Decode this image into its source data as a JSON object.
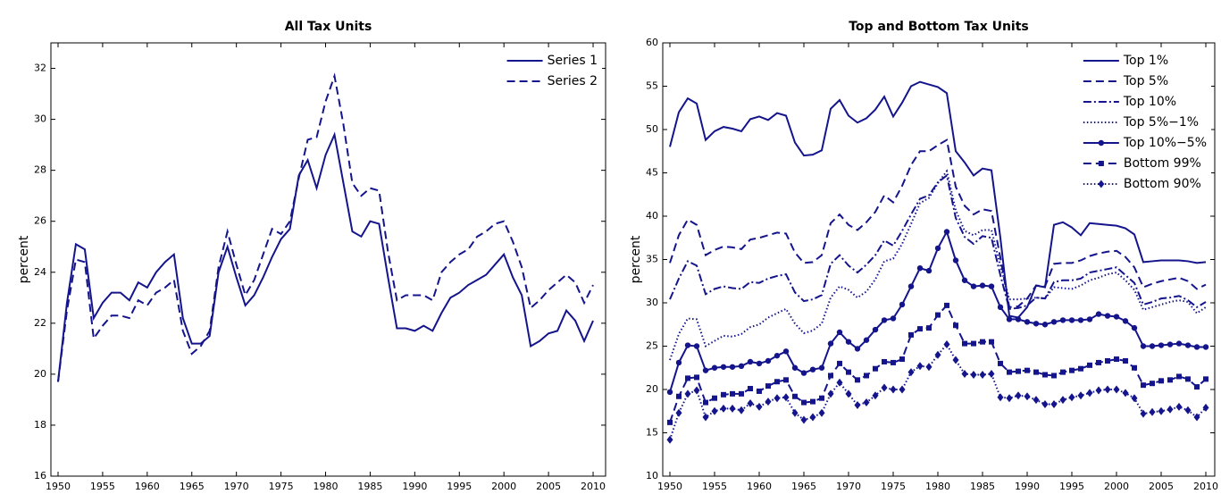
{
  "chart_data": [
    {
      "type": "line",
      "title": "All Tax Units",
      "ylabel": "percent",
      "x": [
        1950,
        1951,
        1952,
        1953,
        1954,
        1955,
        1956,
        1957,
        1958,
        1959,
        1960,
        1961,
        1962,
        1963,
        1964,
        1965,
        1966,
        1967,
        1968,
        1969,
        1970,
        1971,
        1972,
        1973,
        1974,
        1975,
        1976,
        1977,
        1978,
        1979,
        1980,
        1981,
        1982,
        1983,
        1984,
        1985,
        1986,
        1987,
        1988,
        1989,
        1990,
        1991,
        1992,
        1993,
        1994,
        1995,
        1996,
        1997,
        1998,
        1999,
        2000,
        2001,
        2002,
        2003,
        2004,
        2005,
        2006,
        2007,
        2008,
        2009,
        2010
      ],
      "xlim": [
        1949.2,
        2011.4
      ],
      "xticks": [
        1950,
        1955,
        1960,
        1965,
        1970,
        1975,
        1980,
        1985,
        1990,
        1995,
        2000,
        2005,
        2010
      ],
      "ylim": [
        16,
        33
      ],
      "yticks": [
        16,
        18,
        20,
        22,
        24,
        26,
        28,
        30,
        32
      ],
      "legend": "upper right",
      "series": [
        {
          "name": "Series 1",
          "color": "#14148c",
          "linestyle": "solid",
          "values": [
            19.7,
            22.8,
            25.1,
            24.9,
            22.2,
            22.8,
            23.2,
            23.2,
            22.9,
            23.6,
            23.4,
            24.0,
            24.4,
            24.7,
            22.2,
            21.2,
            21.2,
            21.5,
            24.0,
            25.0,
            23.8,
            22.7,
            23.1,
            23.8,
            24.6,
            25.3,
            25.7,
            27.8,
            28.4,
            27.3,
            28.6,
            29.4,
            27.5,
            25.6,
            25.4,
            26.0,
            25.9,
            23.8,
            21.8,
            21.8,
            21.7,
            21.9,
            21.7,
            22.4,
            23.0,
            23.2,
            23.5,
            23.7,
            23.9,
            24.3,
            24.7,
            23.8,
            23.1,
            21.1,
            21.3,
            21.6,
            21.7,
            22.5,
            22.1,
            21.3,
            22.1
          ]
        },
        {
          "name": "Series 2",
          "color": "#14148c",
          "linestyle": "dashed",
          "values": [
            19.7,
            22.5,
            24.5,
            24.4,
            21.4,
            21.9,
            22.3,
            22.3,
            22.2,
            22.9,
            22.7,
            23.2,
            23.4,
            23.7,
            21.7,
            20.8,
            21.1,
            21.7,
            24.2,
            25.6,
            24.3,
            23.1,
            23.7,
            24.7,
            25.7,
            25.5,
            26.0,
            27.7,
            29.2,
            29.3,
            30.7,
            31.7,
            29.8,
            27.5,
            27.0,
            27.3,
            27.2,
            24.8,
            22.9,
            23.1,
            23.1,
            23.1,
            22.9,
            24.0,
            24.4,
            24.7,
            24.9,
            25.4,
            25.6,
            25.9,
            26.0,
            25.2,
            24.2,
            22.6,
            22.9,
            23.3,
            23.6,
            23.9,
            23.6,
            22.8,
            23.5
          ]
        }
      ]
    },
    {
      "type": "line",
      "title": "Top and Bottom Tax Units",
      "ylabel": "percent",
      "x": [
        1950,
        1951,
        1952,
        1953,
        1954,
        1955,
        1956,
        1957,
        1958,
        1959,
        1960,
        1961,
        1962,
        1963,
        1964,
        1965,
        1966,
        1967,
        1968,
        1969,
        1970,
        1971,
        1972,
        1973,
        1974,
        1975,
        1976,
        1977,
        1978,
        1979,
        1980,
        1981,
        1982,
        1983,
        1984,
        1985,
        1986,
        1987,
        1988,
        1989,
        1990,
        1991,
        1992,
        1993,
        1994,
        1995,
        1996,
        1997,
        1998,
        1999,
        2000,
        2001,
        2002,
        2003,
        2004,
        2005,
        2006,
        2007,
        2008,
        2009,
        2010
      ],
      "xlim": [
        1949.2,
        2011
      ],
      "xticks": [
        1950,
        1955,
        1960,
        1965,
        1970,
        1975,
        1980,
        1985,
        1990,
        1995,
        2000,
        2005,
        2010
      ],
      "ylim": [
        10,
        60
      ],
      "yticks": [
        10,
        15,
        20,
        25,
        30,
        35,
        40,
        45,
        50,
        55,
        60
      ],
      "legend": "upper right",
      "series": [
        {
          "name": "Top 1%",
          "color": "#14148c",
          "linestyle": "solid",
          "values": [
            48,
            52,
            53.6,
            53,
            48.8,
            49.8,
            50.3,
            50.1,
            49.8,
            51.2,
            51.5,
            51.1,
            51.9,
            51.6,
            48.5,
            47,
            47.1,
            47.6,
            52.4,
            53.4,
            51.6,
            50.8,
            51.3,
            52.3,
            53.8,
            51.5,
            53.1,
            55,
            55.5,
            55.2,
            54.9,
            54.2,
            47.5,
            46.2,
            44.7,
            45.5,
            45.3,
            37.5,
            28.5,
            28.3,
            29.5,
            32,
            31.8,
            39,
            39.3,
            38.7,
            37.8,
            39.2,
            39.1,
            39,
            38.9,
            38.6,
            37.9,
            34.7,
            34.8,
            34.9,
            34.9,
            34.9,
            34.8,
            34.6,
            34.7
          ]
        },
        {
          "name": "Top 5%",
          "color": "#14148c",
          "linestyle": "dashed",
          "values": [
            34.6,
            37.8,
            39.6,
            39,
            35.5,
            36.1,
            36.5,
            36.4,
            36.2,
            37.3,
            37.5,
            37.8,
            38.1,
            38,
            35.8,
            34.6,
            34.7,
            35.5,
            39.2,
            40.2,
            39,
            38.4,
            39.3,
            40.5,
            42.4,
            41.6,
            43.5,
            45.9,
            47.5,
            47.5,
            48.2,
            48.8,
            43.4,
            41.2,
            40.2,
            40.8,
            40.6,
            35.2,
            29.5,
            29.6,
            30.5,
            32,
            31.9,
            34.5,
            34.6,
            34.6,
            34.9,
            35.4,
            35.7,
            35.9,
            36,
            35.3,
            34.1,
            31.8,
            32.2,
            32.5,
            32.7,
            32.9,
            32.5,
            31.6,
            32.1
          ]
        },
        {
          "name": "Top 10%",
          "color": "#14148c",
          "linestyle": "dashdot",
          "values": [
            30.4,
            32.8,
            34.8,
            34.3,
            31,
            31.6,
            31.9,
            31.7,
            31.6,
            32.4,
            32.3,
            32.8,
            33.1,
            33.3,
            31.2,
            30.2,
            30.4,
            30.9,
            34.5,
            35.5,
            34.3,
            33.5,
            34.4,
            35.5,
            37.2,
            36.6,
            38.3,
            40.2,
            42,
            42.4,
            43.9,
            44.7,
            39.8,
            37.6,
            36.8,
            37.7,
            37.5,
            33.2,
            29.3,
            29.4,
            29.7,
            30.6,
            30.5,
            32.4,
            32.6,
            32.6,
            32.8,
            33.5,
            33.7,
            33.9,
            34.1,
            33.2,
            32.3,
            29.8,
            30.1,
            30.5,
            30.6,
            30.8,
            30.3,
            29.5,
            30.1
          ]
        },
        {
          "name": "Top 5%−1%",
          "color": "#14148c",
          "linestyle": "dotted",
          "values": [
            23.4,
            26.4,
            28.2,
            28.1,
            25,
            25.6,
            26.2,
            26.1,
            26.4,
            27.2,
            27.5,
            28.3,
            28.8,
            29.3,
            27.6,
            26.5,
            26.8,
            27.6,
            30.6,
            31.9,
            31.5,
            30.6,
            31.3,
            32.7,
            34.8,
            35.1,
            36.8,
            39.1,
            41.5,
            42.1,
            43.8,
            45.2,
            40.7,
            38.3,
            37.8,
            38.4,
            38.4,
            34.3,
            30.4,
            30.4,
            30.5,
            30.6,
            30.5,
            31.8,
            31.7,
            31.6,
            32,
            32.6,
            32.9,
            33.3,
            33.5,
            32.6,
            31.5,
            29.2,
            29.5,
            29.8,
            30.1,
            30.3,
            30.1,
            28.8,
            29.5
          ]
        },
        {
          "name": "Top 10%−5%",
          "color": "#14148c",
          "linestyle": "solid",
          "marker": "circle",
          "values": [
            19.7,
            23.1,
            25.1,
            25,
            22.2,
            22.5,
            22.6,
            22.6,
            22.7,
            23.2,
            23,
            23.3,
            23.9,
            24.4,
            22.5,
            21.9,
            22.3,
            22.5,
            25.3,
            26.6,
            25.5,
            24.7,
            25.7,
            26.9,
            28,
            28.2,
            29.8,
            31.9,
            34,
            33.7,
            36.3,
            38.2,
            34.9,
            32.6,
            31.9,
            32,
            31.9,
            29.5,
            28.1,
            28.1,
            27.8,
            27.6,
            27.5,
            27.8,
            28,
            28,
            28,
            28.1,
            28.7,
            28.5,
            28.4,
            27.9,
            27.1,
            25,
            25,
            25.1,
            25.2,
            25.3,
            25.1,
            24.9,
            24.9
          ]
        },
        {
          "name": "Bottom 99%",
          "color": "#14148c",
          "linestyle": "dashed",
          "marker": "square",
          "values": [
            16.2,
            19.2,
            21.3,
            21.4,
            18.5,
            19,
            19.4,
            19.5,
            19.5,
            20.1,
            19.8,
            20.4,
            20.9,
            21.1,
            19.2,
            18.5,
            18.6,
            19,
            21.6,
            23,
            22,
            21.1,
            21.6,
            22.4,
            23.2,
            23.1,
            23.5,
            26.3,
            27,
            27.1,
            28.6,
            29.7,
            27.4,
            25.3,
            25.3,
            25.5,
            25.5,
            23,
            22,
            22.1,
            22.2,
            22,
            21.7,
            21.6,
            22,
            22.2,
            22.4,
            22.8,
            23.1,
            23.3,
            23.5,
            23.3,
            22.5,
            20.5,
            20.7,
            21,
            21.1,
            21.5,
            21.2,
            20.3,
            21.2
          ]
        },
        {
          "name": "Bottom 90%",
          "color": "#14148c",
          "linestyle": "dotted",
          "marker": "diamond",
          "values": [
            14.2,
            17.3,
            19.5,
            19.9,
            16.8,
            17.5,
            17.8,
            17.8,
            17.6,
            18.4,
            18,
            18.6,
            19,
            19.1,
            17.3,
            16.5,
            16.8,
            17.3,
            19.5,
            20.8,
            19.5,
            18.2,
            18.5,
            19.3,
            20.2,
            20,
            20,
            22,
            22.7,
            22.6,
            24,
            25.2,
            23.4,
            21.8,
            21.7,
            21.7,
            21.8,
            19.1,
            19,
            19.3,
            19.2,
            18.8,
            18.3,
            18.3,
            18.8,
            19.1,
            19.3,
            19.6,
            19.9,
            20,
            20,
            19.6,
            19,
            17.2,
            17.4,
            17.5,
            17.7,
            18,
            17.6,
            16.8,
            17.9
          ]
        }
      ]
    }
  ]
}
